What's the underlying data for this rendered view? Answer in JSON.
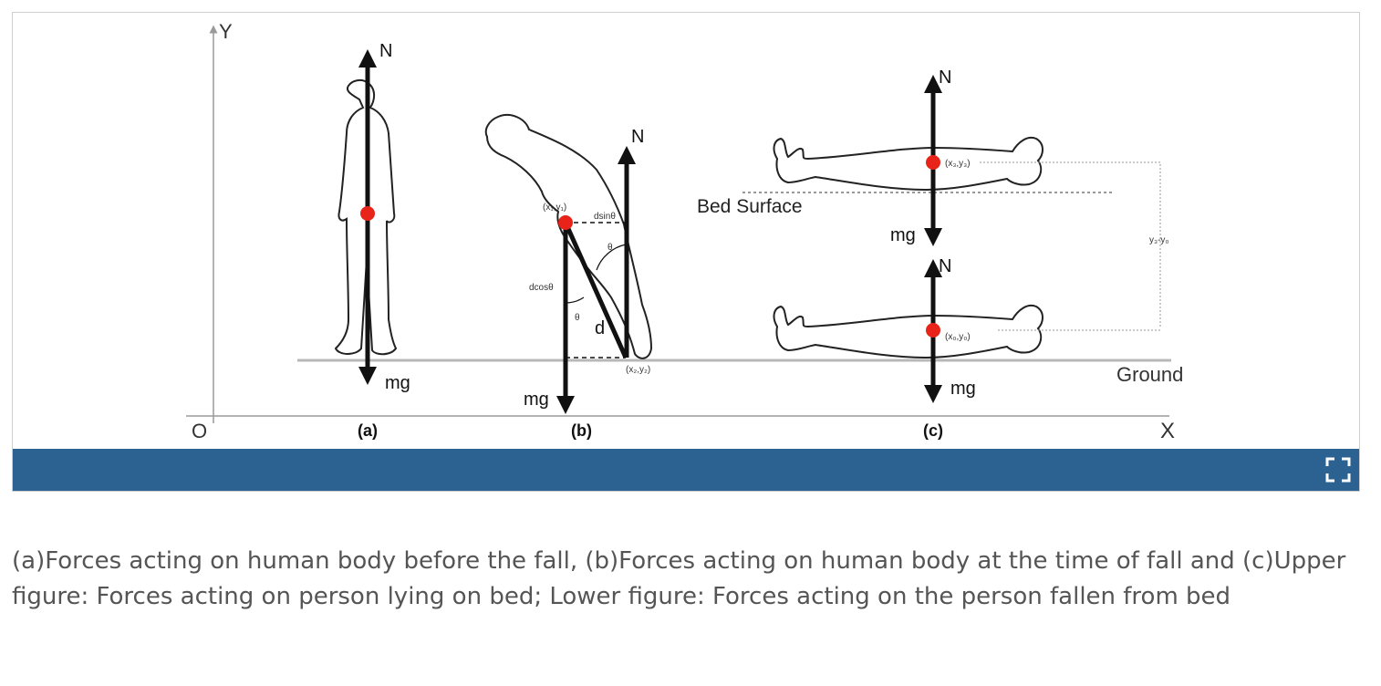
{
  "figure": {
    "labels": {
      "axis_y": "Y",
      "axis_x": "X",
      "origin": "O",
      "panel_a": "(a)",
      "panel_b": "(b)",
      "panel_c": "(c)",
      "normal_force": "N",
      "weight": "mg",
      "bed_surface": "Bed Surface",
      "ground": "Ground",
      "coord_x1y1": "(x₁,y₁)",
      "coord_x2y2": "(x₂,y₂)",
      "coord_x3y3": "(x₃,y₃)",
      "coord_x0y0": "(x₀,y₀)",
      "dsin": "dsinθ",
      "dcos": "dcosθ",
      "theta": "θ",
      "d": "d",
      "height_diff": "y₃-y₀"
    },
    "colors": {
      "centre_of_mass": "#e8231a",
      "arrow": "#111111",
      "body_outline": "#222222",
      "axis": "#9a9a9a",
      "bar": "#2c6291"
    },
    "expand_icon": "fullscreen-icon"
  },
  "caption": "(a)Forces acting on human body before the fall, (b)Forces acting on human body at the time of fall and (c)Upper figure: Forces acting on person lying on bed; Lower figure: Forces acting on the person fallen from bed"
}
